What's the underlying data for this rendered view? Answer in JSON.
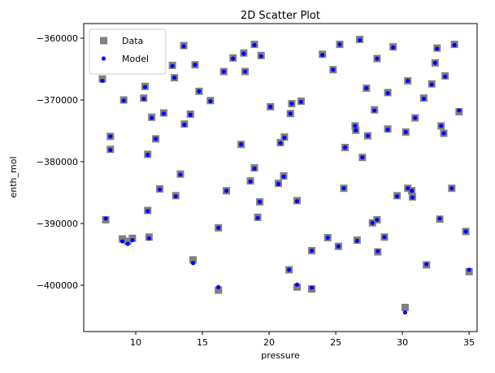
{
  "chart_data": {
    "type": "scatter",
    "title": "2D Scatter Plot",
    "xlabel": "pressure",
    "ylabel": "enth_mol",
    "x": [
      7.5,
      7.75,
      8.1,
      8.1,
      9.0,
      9.1,
      9.4,
      9.75,
      10.6,
      10.7,
      10.9,
      10.9,
      11.0,
      11.2,
      11.5,
      11.8,
      12.1,
      12.75,
      12.9,
      13.0,
      13.35,
      13.6,
      13.65,
      14.1,
      14.3,
      14.45,
      14.75,
      15.6,
      16.2,
      16.2,
      16.6,
      16.8,
      17.3,
      17.9,
      18.1,
      18.2,
      18.6,
      18.9,
      18.9,
      19.15,
      19.3,
      19.4,
      20.1,
      20.7,
      20.85,
      21.1,
      21.15,
      21.5,
      21.6,
      21.7,
      22.1,
      22.1,
      22.4,
      23.2,
      23.2,
      24.0,
      24.4,
      24.8,
      25.2,
      25.3,
      25.6,
      25.7,
      26.45,
      26.5,
      26.6,
      26.8,
      27.0,
      27.3,
      27.4,
      27.75,
      27.9,
      28.1,
      28.1,
      28.15,
      28.65,
      28.9,
      28.9,
      29.3,
      29.6,
      30.2,
      30.25,
      30.4,
      30.4,
      30.7,
      30.75,
      30.95,
      31.6,
      31.8,
      32.2,
      32.45,
      32.6,
      32.8,
      32.9,
      33.1,
      33.2,
      33.7,
      33.9,
      34.25,
      34.75,
      35.0
    ],
    "series": [
      {
        "name": "Data",
        "color": "#808080",
        "marker": "square",
        "values": [
          -366600,
          -389400,
          -375900,
          -378000,
          -392500,
          -370000,
          -392900,
          -392400,
          -369700,
          -367800,
          -378800,
          -387900,
          -392200,
          -372800,
          -376300,
          -384400,
          -372100,
          -364400,
          -366400,
          -385500,
          -382000,
          -361200,
          -373900,
          -372300,
          -395900,
          -364300,
          -368600,
          -370100,
          -390700,
          -400800,
          -365400,
          -384700,
          -363200,
          -377200,
          -362400,
          -365400,
          -383100,
          -361000,
          -381000,
          -389000,
          -386500,
          -362800,
          -371100,
          -383500,
          -376900,
          -382300,
          -376000,
          -397500,
          -372200,
          -370600,
          -400300,
          -386300,
          -370200,
          -400600,
          -394400,
          -362600,
          -392300,
          -365100,
          -393700,
          -361000,
          -384300,
          -377700,
          -374200,
          -374900,
          -392700,
          -360200,
          -379300,
          -368100,
          -375800,
          -389900,
          -371600,
          -363300,
          -389400,
          -394600,
          -392200,
          -368800,
          -374700,
          -361400,
          -385500,
          -403600,
          -375200,
          -366900,
          -384300,
          -384700,
          -385700,
          -372900,
          -369700,
          -396700,
          -367400,
          -364000,
          -361600,
          -389300,
          -374200,
          -375400,
          -366100,
          -384300,
          -361000,
          -371900,
          -391300,
          -397800
        ]
      },
      {
        "name": "Model",
        "color": "#0000ff",
        "marker": "circle",
        "values": [
          -366900,
          -389200,
          -375900,
          -378100,
          -392900,
          -370100,
          -393300,
          -392700,
          -369800,
          -367900,
          -378900,
          -388000,
          -392400,
          -372900,
          -376300,
          -384500,
          -372200,
          -364500,
          -366400,
          -385600,
          -382100,
          -361300,
          -374000,
          -372400,
          -396400,
          -364300,
          -368600,
          -370200,
          -390700,
          -400300,
          -365400,
          -384700,
          -363300,
          -377200,
          -362500,
          -365400,
          -383200,
          -361100,
          -381100,
          -389100,
          -386500,
          -362900,
          -371100,
          -383600,
          -377000,
          -382400,
          -376100,
          -397500,
          -372200,
          -370600,
          -399900,
          -386400,
          -370300,
          -400400,
          -394400,
          -362700,
          -392300,
          -365100,
          -393700,
          -361000,
          -384300,
          -377700,
          -374200,
          -374900,
          -392800,
          -360300,
          -379300,
          -368100,
          -375800,
          -389900,
          -371700,
          -363300,
          -389400,
          -394500,
          -392200,
          -368900,
          -374800,
          -361500,
          -385600,
          -404400,
          -375200,
          -366900,
          -384300,
          -384700,
          -385800,
          -372900,
          -369800,
          -396600,
          -367500,
          -364000,
          -361700,
          -389200,
          -374200,
          -375400,
          -366200,
          -384300,
          -361100,
          -371700,
          -391300,
          -397500
        ]
      }
    ],
    "xlim": [
      6.1,
      35.6
    ],
    "xticks": [
      10,
      15,
      20,
      25,
      30,
      35
    ],
    "ylim": [
      -407500,
      -357630
    ],
    "yticks": [
      {
        "value": -400000,
        "label": "−400000"
      },
      {
        "value": -390000,
        "label": "−390000"
      },
      {
        "value": -380000,
        "label": "−380000"
      },
      {
        "value": -370000,
        "label": "−370000"
      },
      {
        "value": -360000,
        "label": "−360000"
      }
    ],
    "legend": "upper left"
  }
}
